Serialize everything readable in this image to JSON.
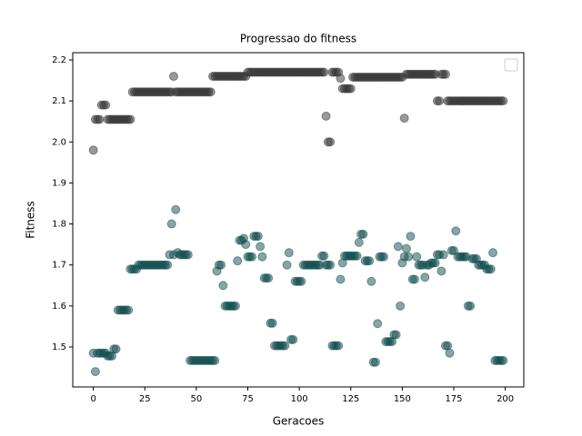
{
  "chart_data": {
    "type": "scatter",
    "title": "Progressao do fitness",
    "x_label": "Geracoes",
    "y_label": "Fitness",
    "x": [
      0,
      1,
      2,
      3,
      4,
      5,
      6,
      7,
      8,
      9,
      10,
      11,
      12,
      13,
      14,
      15,
      16,
      17,
      18,
      19,
      20,
      21,
      22,
      23,
      24,
      25,
      26,
      27,
      28,
      29,
      30,
      31,
      32,
      33,
      34,
      35,
      36,
      37,
      38,
      39,
      40,
      41,
      42,
      43,
      44,
      45,
      46,
      47,
      48,
      49,
      50,
      51,
      52,
      53,
      54,
      55,
      56,
      57,
      58,
      59,
      60,
      61,
      62,
      63,
      64,
      65,
      66,
      67,
      68,
      69,
      70,
      71,
      72,
      73,
      74,
      75,
      76,
      77,
      78,
      79,
      80,
      81,
      82,
      83,
      84,
      85,
      86,
      87,
      88,
      89,
      90,
      91,
      92,
      93,
      94,
      95,
      96,
      97,
      98,
      99,
      100,
      101,
      102,
      103,
      104,
      105,
      106,
      107,
      108,
      109,
      110,
      111,
      112,
      113,
      114,
      115,
      116,
      117,
      118,
      119,
      120,
      121,
      122,
      123,
      124,
      125,
      126,
      127,
      128,
      129,
      130,
      131,
      132,
      133,
      134,
      135,
      136,
      137,
      138,
      139,
      140,
      141,
      142,
      143,
      144,
      145,
      146,
      147,
      148,
      149,
      150,
      151,
      152,
      153,
      154,
      155,
      156,
      157,
      158,
      159,
      160,
      161,
      162,
      163,
      164,
      165,
      166,
      167,
      168,
      169,
      170,
      171,
      172,
      173,
      174,
      175,
      176,
      177,
      178,
      179,
      180,
      181,
      182,
      183,
      184,
      185,
      186,
      187,
      188,
      189,
      190,
      191,
      192,
      193,
      194,
      195,
      196,
      197,
      198,
      199
    ],
    "series": [
      {
        "color": "#333333",
        "values": [
          1.98,
          2.055,
          2.055,
          2.055,
          2.09,
          2.09,
          2.09,
          2.055,
          2.055,
          2.055,
          2.055,
          2.055,
          2.055,
          2.055,
          2.055,
          2.055,
          2.055,
          2.055,
          2.055,
          2.122,
          2.122,
          2.122,
          2.122,
          2.122,
          2.122,
          2.122,
          2.122,
          2.122,
          2.122,
          2.122,
          2.122,
          2.122,
          2.122,
          2.122,
          2.122,
          2.122,
          2.122,
          2.122,
          2.122,
          2.16,
          2.122,
          2.122,
          2.122,
          2.122,
          2.122,
          2.122,
          2.122,
          2.122,
          2.122,
          2.122,
          2.122,
          2.122,
          2.122,
          2.122,
          2.122,
          2.122,
          2.122,
          2.122,
          2.16,
          2.16,
          2.16,
          2.16,
          2.16,
          2.16,
          2.16,
          2.16,
          2.16,
          2.16,
          2.16,
          2.16,
          2.16,
          2.16,
          2.16,
          2.16,
          2.16,
          2.17,
          2.17,
          2.17,
          2.17,
          2.17,
          2.17,
          2.17,
          2.17,
          2.17,
          2.17,
          2.17,
          2.17,
          2.17,
          2.17,
          2.17,
          2.17,
          2.17,
          2.17,
          2.17,
          2.17,
          2.17,
          2.17,
          2.17,
          2.17,
          2.17,
          2.17,
          2.17,
          2.17,
          2.17,
          2.17,
          2.17,
          2.17,
          2.17,
          2.17,
          2.17,
          2.17,
          2.17,
          2.17,
          2.063,
          2.0,
          2.0,
          2.17,
          2.17,
          2.17,
          2.17,
          2.155,
          2.13,
          2.13,
          2.13,
          2.13,
          2.13,
          2.158,
          2.158,
          2.158,
          2.158,
          2.158,
          2.158,
          2.158,
          2.158,
          2.158,
          2.158,
          2.158,
          2.158,
          2.158,
          2.158,
          2.158,
          2.158,
          2.158,
          2.158,
          2.158,
          2.158,
          2.158,
          2.158,
          2.158,
          2.158,
          2.158,
          2.058,
          2.165,
          2.165,
          2.165,
          2.165,
          2.165,
          2.165,
          2.165,
          2.165,
          2.165,
          2.165,
          2.165,
          2.165,
          2.165,
          2.165,
          2.165,
          2.1,
          2.1,
          2.165,
          2.165,
          2.165,
          2.1,
          2.1,
          2.1,
          2.1,
          2.1,
          2.1,
          2.1,
          2.1,
          2.1,
          2.1,
          2.1,
          2.1,
          2.1,
          2.1,
          2.1,
          2.1,
          2.1,
          2.1,
          2.1,
          2.1,
          2.1,
          2.1,
          2.1,
          2.1,
          2.1,
          2.1,
          2.1,
          2.1
        ]
      },
      {
        "color": "#0f4c4c",
        "values": [
          1.485,
          1.44,
          1.485,
          1.485,
          1.485,
          1.485,
          1.485,
          1.478,
          1.478,
          1.478,
          1.495,
          1.495,
          1.59,
          1.59,
          1.59,
          1.59,
          1.59,
          1.59,
          1.69,
          1.69,
          1.69,
          1.69,
          1.7,
          1.7,
          1.7,
          1.7,
          1.7,
          1.7,
          1.7,
          1.7,
          1.7,
          1.7,
          1.7,
          1.7,
          1.7,
          1.7,
          1.7,
          1.725,
          1.8,
          1.725,
          1.835,
          1.73,
          1.725,
          1.725,
          1.725,
          1.725,
          1.725,
          1.467,
          1.467,
          1.467,
          1.467,
          1.467,
          1.467,
          1.467,
          1.467,
          1.467,
          1.467,
          1.467,
          1.467,
          1.467,
          1.685,
          1.7,
          1.7,
          1.65,
          1.6,
          1.6,
          1.6,
          1.6,
          1.6,
          1.6,
          1.71,
          1.76,
          1.76,
          1.765,
          1.75,
          1.72,
          1.72,
          1.72,
          1.77,
          1.77,
          1.77,
          1.745,
          1.72,
          1.668,
          1.668,
          1.668,
          1.558,
          1.558,
          1.503,
          1.503,
          1.503,
          1.503,
          1.503,
          1.503,
          1.7,
          1.73,
          1.518,
          1.518,
          1.66,
          1.66,
          1.66,
          1.66,
          1.7,
          1.7,
          1.7,
          1.7,
          1.7,
          1.7,
          1.7,
          1.7,
          1.7,
          1.722,
          1.722,
          1.7,
          1.7,
          1.7,
          1.503,
          1.503,
          1.503,
          1.503,
          1.665,
          1.705,
          1.722,
          1.722,
          1.722,
          1.722,
          1.722,
          1.722,
          1.722,
          1.755,
          1.775,
          1.775,
          1.71,
          1.71,
          1.71,
          1.66,
          1.463,
          1.463,
          1.557,
          1.72,
          1.72,
          1.72,
          1.513,
          1.513,
          1.513,
          1.513,
          1.53,
          1.53,
          1.745,
          1.6,
          1.705,
          1.72,
          1.74,
          1.72,
          1.77,
          1.665,
          1.665,
          1.72,
          1.7,
          1.7,
          1.7,
          1.67,
          1.7,
          1.7,
          1.705,
          1.705,
          1.705,
          1.725,
          1.725,
          1.685,
          1.725,
          1.503,
          1.503,
          1.485,
          1.735,
          1.735,
          1.783,
          1.72,
          1.72,
          1.72,
          1.72,
          1.72,
          1.6,
          1.6,
          1.715,
          1.715,
          1.715,
          1.7,
          1.7,
          1.7,
          1.7,
          1.69,
          1.69,
          1.69,
          1.73,
          1.467,
          1.467,
          1.467,
          1.467,
          1.467
        ]
      }
    ],
    "alpha": 0.5,
    "xlim": [
      -10,
      209
    ],
    "xticks": [
      0,
      25,
      50,
      75,
      100,
      125,
      150,
      175,
      200
    ],
    "ylim": [
      1.4025,
      2.2177
    ],
    "yticks": [
      1.5,
      1.6,
      1.7,
      1.8,
      1.9,
      {
        "value": 2.0,
        "label": "2.0"
      },
      2.1,
      2.2
    ],
    "legend": "upper right"
  }
}
